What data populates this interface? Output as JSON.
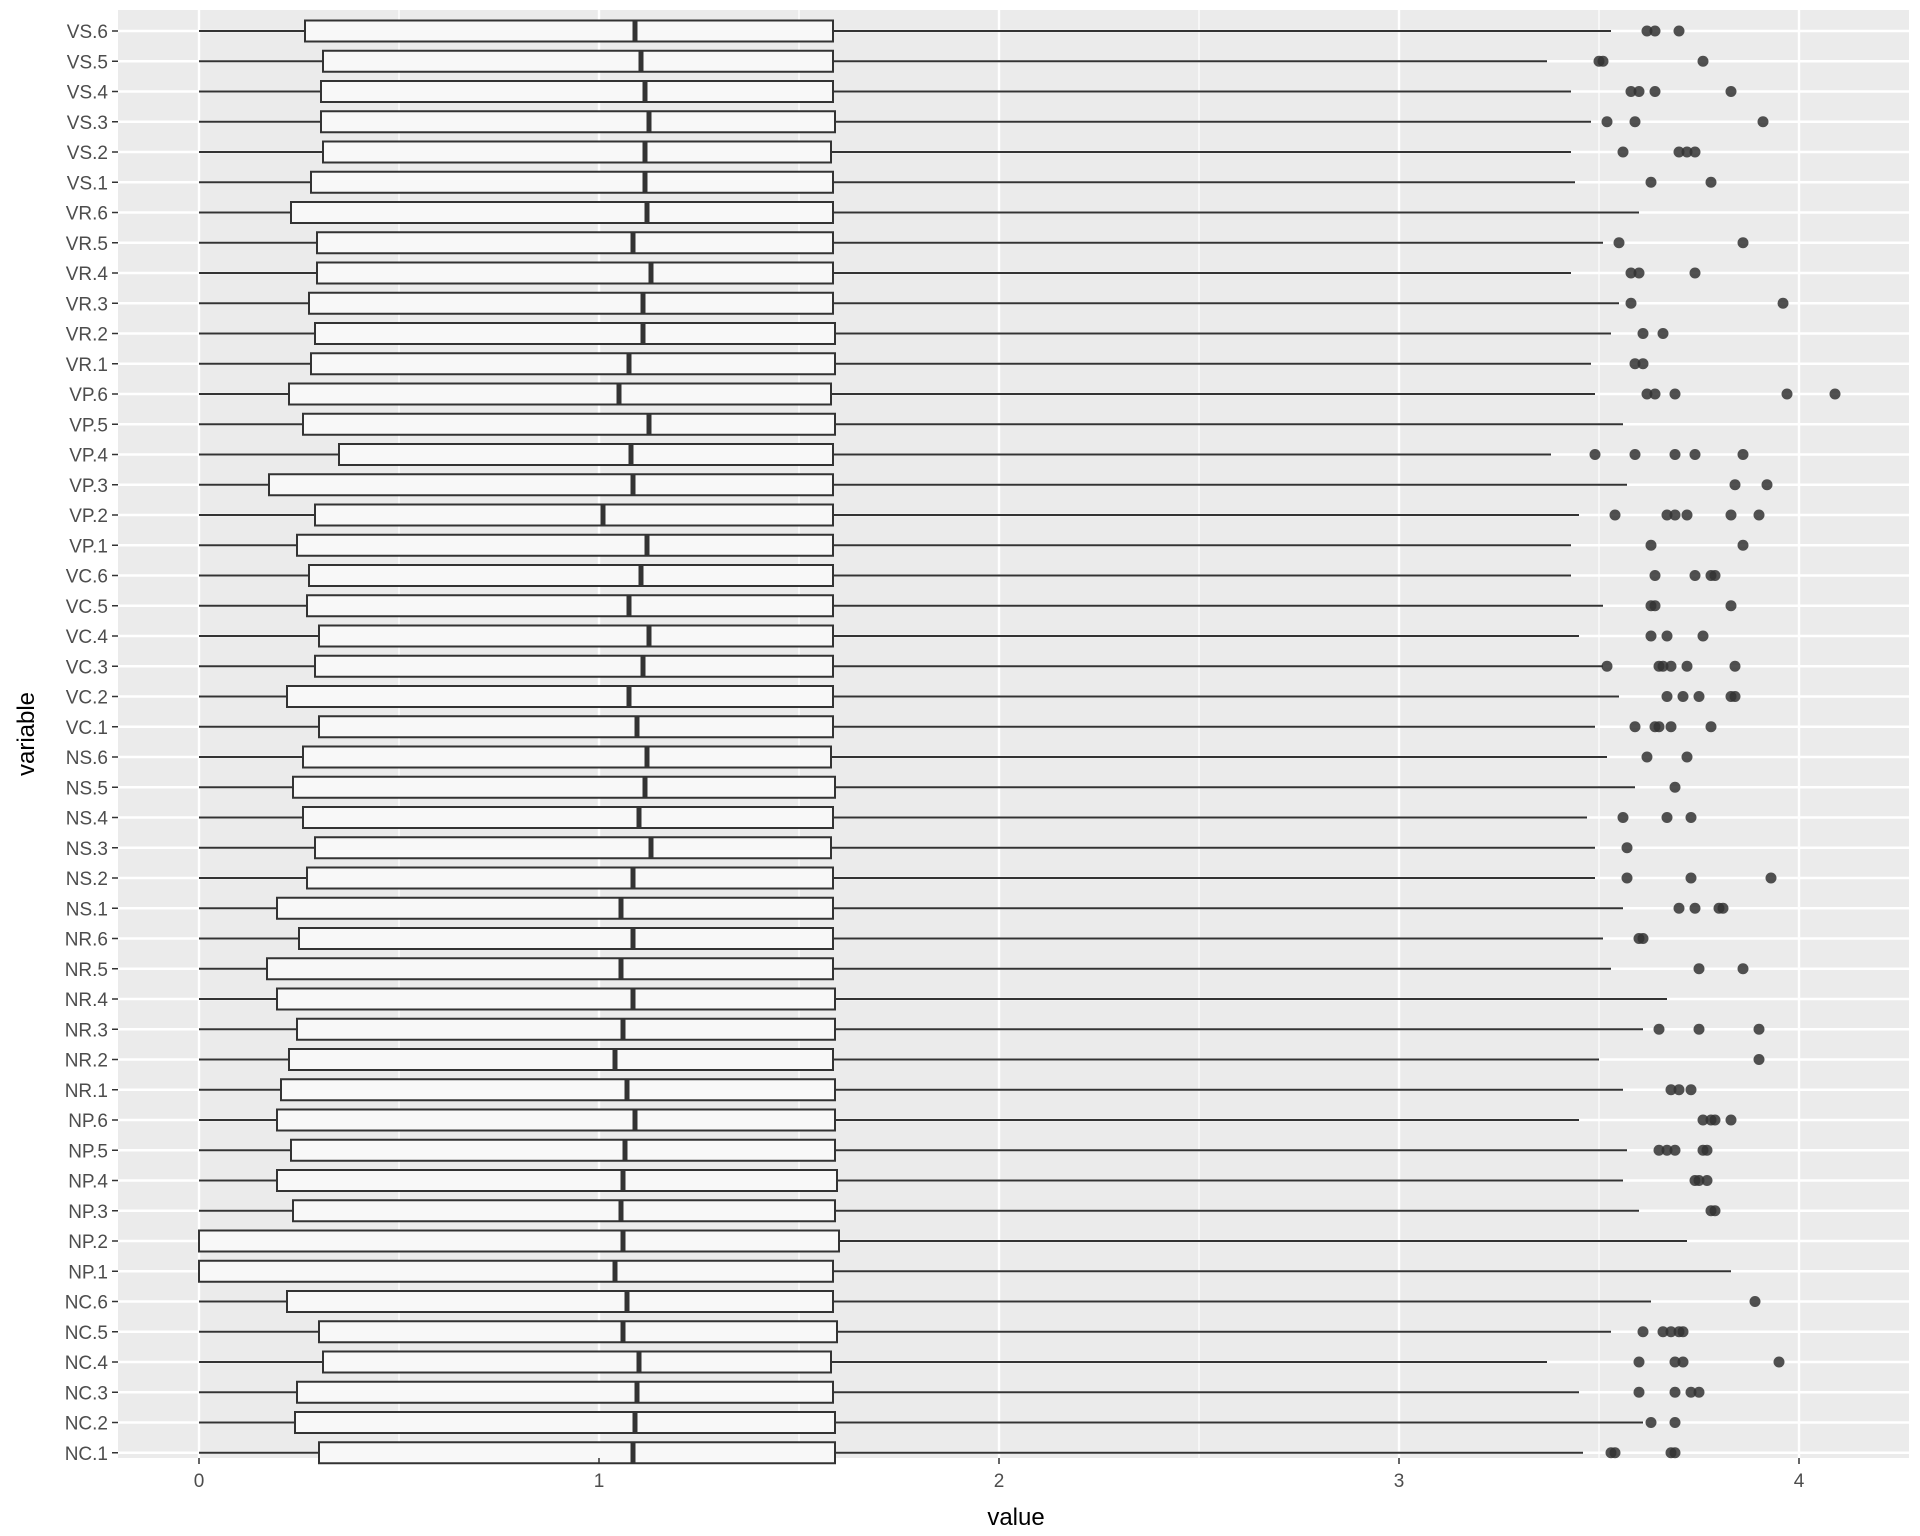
{
  "chart_data": {
    "type": "boxplot",
    "orientation": "horizontal",
    "xlabel": "value",
    "ylabel": "variable",
    "xlim": [
      -0.2,
      4.3
    ],
    "x_ticks": [
      0,
      1,
      2,
      3,
      4
    ],
    "grid": true,
    "legend": "none",
    "colors": {
      "panel_background": "#ebebeb",
      "grid_major": "#ffffff",
      "box_fill": "#f8f8f8",
      "box_stroke": "#333333",
      "outlier": "#333333"
    },
    "categories": [
      "VS.6",
      "VS.5",
      "VS.4",
      "VS.3",
      "VS.2",
      "VS.1",
      "VR.6",
      "VR.5",
      "VR.4",
      "VR.3",
      "VR.2",
      "VR.1",
      "VP.6",
      "VP.5",
      "VP.4",
      "VP.3",
      "VP.2",
      "VP.1",
      "VC.6",
      "VC.5",
      "VC.4",
      "VC.3",
      "VC.2",
      "VC.1",
      "NS.6",
      "NS.5",
      "NS.4",
      "NS.3",
      "NS.2",
      "NS.1",
      "NR.6",
      "NR.5",
      "NR.4",
      "NR.3",
      "NR.2",
      "NR.1",
      "NP.6",
      "NP.5",
      "NP.4",
      "NP.3",
      "NP.2",
      "NP.1",
      "NC.6",
      "NC.5",
      "NC.4",
      "NC.3",
      "NC.2",
      "NC.1"
    ],
    "boxes": [
      {
        "label": "VS.6",
        "whisker_low": 0,
        "q1": 0.265,
        "median": 1.09,
        "q3": 1.585,
        "whisker_high": 3.53,
        "outliers": [
          3.62,
          3.64,
          3.7
        ]
      },
      {
        "label": "VS.5",
        "whisker_low": 0,
        "q1": 0.31,
        "median": 1.105,
        "q3": 1.585,
        "whisker_high": 3.37,
        "outliers": [
          3.5,
          3.51,
          3.76
        ]
      },
      {
        "label": "VS.4",
        "whisker_low": 0,
        "q1": 0.305,
        "median": 1.115,
        "q3": 1.585,
        "whisker_high": 3.43,
        "outliers": [
          3.58,
          3.6,
          3.64,
          3.83
        ]
      },
      {
        "label": "VS.3",
        "whisker_low": 0,
        "q1": 0.305,
        "median": 1.125,
        "q3": 1.59,
        "whisker_high": 3.48,
        "outliers": [
          3.52,
          3.59,
          3.91
        ]
      },
      {
        "label": "VS.2",
        "whisker_low": 0,
        "q1": 0.31,
        "median": 1.115,
        "q3": 1.58,
        "whisker_high": 3.43,
        "outliers": [
          3.56,
          3.7,
          3.72,
          3.74
        ]
      },
      {
        "label": "VS.1",
        "whisker_low": 0,
        "q1": 0.28,
        "median": 1.115,
        "q3": 1.585,
        "whisker_high": 3.44,
        "outliers": [
          3.63,
          3.78
        ]
      },
      {
        "label": "VR.6",
        "whisker_low": 0,
        "q1": 0.23,
        "median": 1.12,
        "q3": 1.585,
        "whisker_high": 3.6,
        "outliers": []
      },
      {
        "label": "VR.5",
        "whisker_low": 0,
        "q1": 0.295,
        "median": 1.085,
        "q3": 1.585,
        "whisker_high": 3.51,
        "outliers": [
          3.55,
          3.86
        ]
      },
      {
        "label": "VR.4",
        "whisker_low": 0,
        "q1": 0.295,
        "median": 1.13,
        "q3": 1.585,
        "whisker_high": 3.43,
        "outliers": [
          3.58,
          3.6,
          3.74
        ]
      },
      {
        "label": "VR.3",
        "whisker_low": 0,
        "q1": 0.275,
        "median": 1.11,
        "q3": 1.585,
        "whisker_high": 3.55,
        "outliers": [
          3.58,
          3.96
        ]
      },
      {
        "label": "VR.2",
        "whisker_low": 0,
        "q1": 0.29,
        "median": 1.11,
        "q3": 1.59,
        "whisker_high": 3.53,
        "outliers": [
          3.61,
          3.66
        ]
      },
      {
        "label": "VR.1",
        "whisker_low": 0,
        "q1": 0.28,
        "median": 1.075,
        "q3": 1.59,
        "whisker_high": 3.48,
        "outliers": [
          3.59,
          3.61
        ]
      },
      {
        "label": "VP.6",
        "whisker_low": 0,
        "q1": 0.225,
        "median": 1.05,
        "q3": 1.58,
        "whisker_high": 3.49,
        "outliers": [
          3.62,
          3.64,
          3.69,
          3.97,
          4.09
        ]
      },
      {
        "label": "VP.5",
        "whisker_low": 0,
        "q1": 0.26,
        "median": 1.125,
        "q3": 1.59,
        "whisker_high": 3.56,
        "outliers": []
      },
      {
        "label": "VP.4",
        "whisker_low": 0,
        "q1": 0.35,
        "median": 1.08,
        "q3": 1.585,
        "whisker_high": 3.38,
        "outliers": [
          3.49,
          3.59,
          3.69,
          3.74,
          3.86
        ]
      },
      {
        "label": "VP.3",
        "whisker_low": 0,
        "q1": 0.175,
        "median": 1.085,
        "q3": 1.585,
        "whisker_high": 3.57,
        "outliers": [
          3.84,
          3.92
        ]
      },
      {
        "label": "VP.2",
        "whisker_low": 0,
        "q1": 0.29,
        "median": 1.01,
        "q3": 1.585,
        "whisker_high": 3.45,
        "outliers": [
          3.54,
          3.67,
          3.69,
          3.72,
          3.83,
          3.9
        ]
      },
      {
        "label": "VP.1",
        "whisker_low": 0,
        "q1": 0.245,
        "median": 1.12,
        "q3": 1.585,
        "whisker_high": 3.43,
        "outliers": [
          3.63,
          3.86
        ]
      },
      {
        "label": "VC.6",
        "whisker_low": 0,
        "q1": 0.275,
        "median": 1.105,
        "q3": 1.585,
        "whisker_high": 3.43,
        "outliers": [
          3.64,
          3.74,
          3.78,
          3.79
        ]
      },
      {
        "label": "VC.5",
        "whisker_low": 0,
        "q1": 0.27,
        "median": 1.075,
        "q3": 1.585,
        "whisker_high": 3.51,
        "outliers": [
          3.63,
          3.64,
          3.83
        ]
      },
      {
        "label": "VC.4",
        "whisker_low": 0,
        "q1": 0.3,
        "median": 1.125,
        "q3": 1.585,
        "whisker_high": 3.45,
        "outliers": [
          3.63,
          3.67,
          3.76
        ]
      },
      {
        "label": "VC.3",
        "whisker_low": 0,
        "q1": 0.29,
        "median": 1.11,
        "q3": 1.585,
        "whisker_high": 3.51,
        "outliers": [
          3.52,
          3.65,
          3.66,
          3.68,
          3.72,
          3.84
        ]
      },
      {
        "label": "VC.2",
        "whisker_low": 0,
        "q1": 0.22,
        "median": 1.075,
        "q3": 1.585,
        "whisker_high": 3.55,
        "outliers": [
          3.67,
          3.71,
          3.75,
          3.83,
          3.84
        ]
      },
      {
        "label": "VC.1",
        "whisker_low": 0,
        "q1": 0.3,
        "median": 1.095,
        "q3": 1.585,
        "whisker_high": 3.49,
        "outliers": [
          3.59,
          3.64,
          3.65,
          3.68,
          3.78
        ]
      },
      {
        "label": "NS.6",
        "whisker_low": 0,
        "q1": 0.26,
        "median": 1.12,
        "q3": 1.58,
        "whisker_high": 3.52,
        "outliers": [
          3.62,
          3.72
        ]
      },
      {
        "label": "NS.5",
        "whisker_low": 0,
        "q1": 0.235,
        "median": 1.115,
        "q3": 1.59,
        "whisker_high": 3.59,
        "outliers": [
          3.69
        ]
      },
      {
        "label": "NS.4",
        "whisker_low": 0,
        "q1": 0.26,
        "median": 1.1,
        "q3": 1.585,
        "whisker_high": 3.47,
        "outliers": [
          3.56,
          3.67,
          3.73
        ]
      },
      {
        "label": "NS.3",
        "whisker_low": 0,
        "q1": 0.29,
        "median": 1.13,
        "q3": 1.58,
        "whisker_high": 3.49,
        "outliers": [
          3.57
        ]
      },
      {
        "label": "NS.2",
        "whisker_low": 0,
        "q1": 0.27,
        "median": 1.085,
        "q3": 1.585,
        "whisker_high": 3.49,
        "outliers": [
          3.57,
          3.73,
          3.93
        ]
      },
      {
        "label": "NS.1",
        "whisker_low": 0,
        "q1": 0.195,
        "median": 1.055,
        "q3": 1.585,
        "whisker_high": 3.56,
        "outliers": [
          3.7,
          3.74,
          3.8,
          3.81
        ]
      },
      {
        "label": "NR.6",
        "whisker_low": 0,
        "q1": 0.25,
        "median": 1.085,
        "q3": 1.585,
        "whisker_high": 3.51,
        "outliers": [
          3.6,
          3.61
        ]
      },
      {
        "label": "NR.5",
        "whisker_low": 0,
        "q1": 0.17,
        "median": 1.055,
        "q3": 1.585,
        "whisker_high": 3.53,
        "outliers": [
          3.75,
          3.86
        ]
      },
      {
        "label": "NR.4",
        "whisker_low": 0,
        "q1": 0.195,
        "median": 1.085,
        "q3": 1.59,
        "whisker_high": 3.67,
        "outliers": []
      },
      {
        "label": "NR.3",
        "whisker_low": 0,
        "q1": 0.245,
        "median": 1.06,
        "q3": 1.59,
        "whisker_high": 3.61,
        "outliers": [
          3.65,
          3.75,
          3.9
        ]
      },
      {
        "label": "NR.2",
        "whisker_low": 0,
        "q1": 0.225,
        "median": 1.04,
        "q3": 1.585,
        "whisker_high": 3.5,
        "outliers": [
          3.9
        ]
      },
      {
        "label": "NR.1",
        "whisker_low": 0,
        "q1": 0.205,
        "median": 1.07,
        "q3": 1.59,
        "whisker_high": 3.56,
        "outliers": [
          3.68,
          3.7,
          3.73
        ]
      },
      {
        "label": "NP.6",
        "whisker_low": 0,
        "q1": 0.195,
        "median": 1.09,
        "q3": 1.59,
        "whisker_high": 3.45,
        "outliers": [
          3.76,
          3.78,
          3.79,
          3.83
        ]
      },
      {
        "label": "NP.5",
        "whisker_low": 0,
        "q1": 0.23,
        "median": 1.065,
        "q3": 1.59,
        "whisker_high": 3.57,
        "outliers": [
          3.65,
          3.67,
          3.69,
          3.76,
          3.77
        ]
      },
      {
        "label": "NP.4",
        "whisker_low": 0,
        "q1": 0.195,
        "median": 1.06,
        "q3": 1.595,
        "whisker_high": 3.56,
        "outliers": [
          3.74,
          3.75,
          3.77
        ]
      },
      {
        "label": "NP.3",
        "whisker_low": 0,
        "q1": 0.235,
        "median": 1.055,
        "q3": 1.59,
        "whisker_high": 3.6,
        "outliers": [
          3.78,
          3.79
        ]
      },
      {
        "label": "NP.2",
        "whisker_low": 0,
        "q1": 0,
        "median": 1.06,
        "q3": 1.6,
        "whisker_high": 3.72,
        "outliers": []
      },
      {
        "label": "NP.1",
        "whisker_low": 0,
        "q1": 0,
        "median": 1.04,
        "q3": 1.585,
        "whisker_high": 3.83,
        "outliers": []
      },
      {
        "label": "NC.6",
        "whisker_low": 0,
        "q1": 0.22,
        "median": 1.07,
        "q3": 1.585,
        "whisker_high": 3.63,
        "outliers": [
          3.89
        ]
      },
      {
        "label": "NC.5",
        "whisker_low": 0,
        "q1": 0.3,
        "median": 1.06,
        "q3": 1.595,
        "whisker_high": 3.53,
        "outliers": [
          3.61,
          3.66,
          3.68,
          3.7,
          3.71
        ]
      },
      {
        "label": "NC.4",
        "whisker_low": 0,
        "q1": 0.31,
        "median": 1.1,
        "q3": 1.58,
        "whisker_high": 3.37,
        "outliers": [
          3.6,
          3.69,
          3.71,
          3.95
        ]
      },
      {
        "label": "NC.3",
        "whisker_low": 0,
        "q1": 0.245,
        "median": 1.095,
        "q3": 1.585,
        "whisker_high": 3.45,
        "outliers": [
          3.6,
          3.69,
          3.73,
          3.75
        ]
      },
      {
        "label": "NC.2",
        "whisker_low": 0,
        "q1": 0.24,
        "median": 1.09,
        "q3": 1.59,
        "whisker_high": 3.61,
        "outliers": [
          3.63,
          3.69
        ]
      },
      {
        "label": "NC.1",
        "whisker_low": 0,
        "q1": 0.3,
        "median": 1.085,
        "q3": 1.59,
        "whisker_high": 3.46,
        "outliers": [
          3.53,
          3.54,
          3.68,
          3.69
        ]
      }
    ]
  }
}
